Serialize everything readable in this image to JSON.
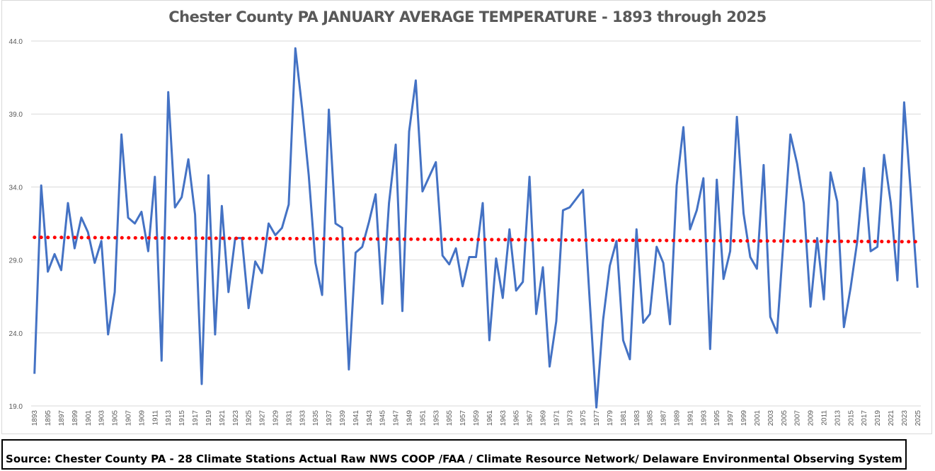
{
  "chart_data": {
    "type": "line",
    "title": "Chester County PA JANUARY AVERAGE TEMPERATURE - 1893 through 2025",
    "xlabel": "",
    "ylabel": "",
    "ylim": [
      19.0,
      44.0
    ],
    "yticks": [
      "44.0",
      "39.0",
      "34.0",
      "29.0",
      "24.0",
      "19.0"
    ],
    "ytick_values": [
      44,
      39,
      34,
      29,
      24,
      19
    ],
    "grid": true,
    "legend": "none",
    "x_start": 1893,
    "x_end": 2025,
    "x_tick_step": 2,
    "series": [
      {
        "color": "#4472c4",
        "style": "solid",
        "values": [
          21.2,
          34.1,
          28.2,
          29.4,
          28.3,
          32.9,
          29.8,
          31.9,
          30.9,
          28.8,
          30.3,
          23.9,
          26.8,
          37.6,
          31.9,
          31.5,
          32.3,
          29.6,
          34.7,
          22.1,
          40.5,
          32.6,
          33.3,
          35.9,
          32.1,
          20.5,
          34.8,
          23.9,
          32.7,
          26.8,
          30.5,
          30.5,
          25.7,
          28.9,
          28.1,
          31.5,
          30.7,
          31.2,
          32.8,
          43.5,
          39.4,
          34.8,
          28.8,
          26.6,
          39.3,
          31.5,
          31.2,
          21.5,
          29.5,
          29.9,
          31.6,
          33.5,
          26.0,
          32.9,
          36.9,
          25.5,
          37.8,
          41.3,
          33.7,
          34.7,
          35.7,
          29.3,
          28.7,
          29.8,
          27.2,
          29.2,
          29.2,
          32.9,
          23.5,
          29.1,
          26.4,
          31.1,
          26.9,
          27.5,
          34.7,
          25.3,
          28.5,
          21.7,
          24.8,
          32.4,
          32.6,
          33.2,
          33.8,
          26.2,
          18.9,
          24.9,
          28.6,
          30.3,
          23.5,
          22.2,
          31.1,
          24.7,
          25.3,
          29.9,
          28.8,
          24.6,
          34.1,
          38.1,
          31.1,
          32.4,
          34.6,
          22.9,
          34.5,
          27.7,
          29.6,
          38.8,
          32.2,
          29.2,
          28.4,
          35.5,
          25.1,
          24.0,
          30.6,
          37.6,
          35.6,
          32.9,
          25.8,
          30.5,
          26.3,
          35.0,
          33.0,
          24.4,
          27.1,
          30.3,
          35.3,
          29.6,
          29.9,
          36.2,
          32.9,
          27.6,
          39.8,
          33.6,
          27.1
        ]
      },
      {
        "color": "#ff0000",
        "style": "dotted",
        "trend_start": 30.55,
        "trend_end": 30.25
      }
    ]
  },
  "footer": {
    "source": "Source: Chester County PA - 28 Climate Stations Actual Raw NWS COOP /FAA / Climate Resource Network/ Delaware Environmental Observing System"
  }
}
